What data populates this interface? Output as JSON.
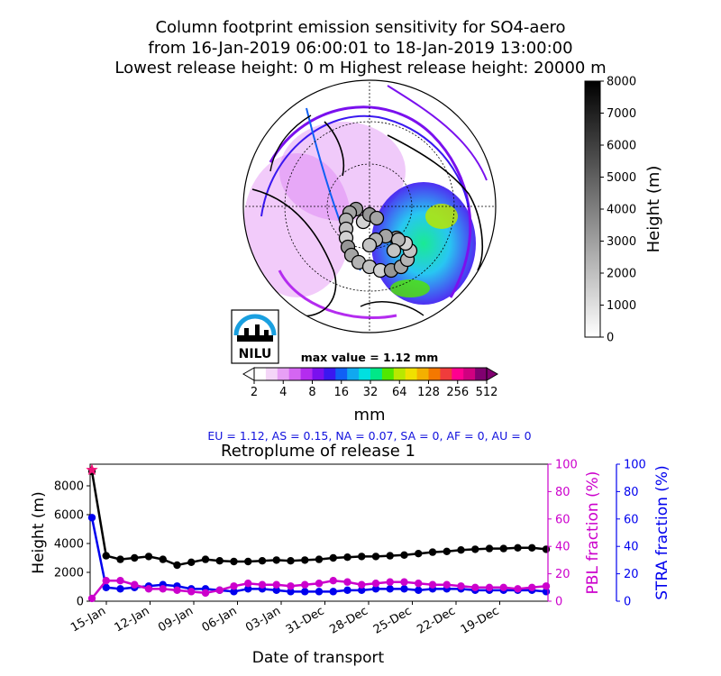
{
  "header": {
    "line1": "Column footprint emission sensitivity for SO4-aero",
    "line2": "from 16-Jan-2019 06:00:01 to 18-Jan-2019 13:00:00",
    "line3": "Lowest release height: 0 m       Highest release height: 20000 m"
  },
  "logo": {
    "text": "NILU"
  },
  "colors": {
    "pbl": "#cc00cc",
    "stra": "#0000ee",
    "height": "#000000",
    "release_marker": "#ee1177",
    "info_text": "#1111dd"
  },
  "map": {
    "max_label": "max value = 1.12 mm",
    "colorbar": {
      "ticks": [
        "2",
        "4",
        "8",
        "16",
        "32",
        "64",
        "128",
        "256",
        "512"
      ],
      "unit": "mm",
      "colors": [
        "#ffffff",
        "#f4d6f8",
        "#e7a0f5",
        "#d466f2",
        "#b42cef",
        "#7a10ee",
        "#3a18f0",
        "#1060f5",
        "#10a8f0",
        "#00e0e0",
        "#00e888",
        "#50e800",
        "#b8e800",
        "#f0e000",
        "#f4b000",
        "#f47800",
        "#f03c3c",
        "#ff0090",
        "#d00080",
        "#800070"
      ]
    },
    "region_info": "EU = 1.12,  AS = 0.15,  NA = 0.07,  SA = 0,  AF = 0,  AU = 0"
  },
  "height_colorbar": {
    "label": "Height (m)",
    "ticks": [
      "0",
      "1000",
      "2000",
      "3000",
      "4000",
      "5000",
      "6000",
      "7000",
      "8000"
    ]
  },
  "chart_data": {
    "type": "line",
    "title": "Retroplume of release 1",
    "xlabel": "Date of transport",
    "ylabel": "Height (m)",
    "ylabel_right1": "PBL fraction (%)",
    "ylabel_right2": "STRA fraction (%)",
    "ylim": [
      0,
      9500
    ],
    "ylim_right": [
      0,
      100
    ],
    "y_ticks": [
      "0",
      "2000",
      "4000",
      "6000",
      "8000"
    ],
    "y_right_ticks": [
      "0",
      "20",
      "40",
      "60",
      "80",
      "100"
    ],
    "x_tick_labels": [
      "15-Jan",
      "12-Jan",
      "09-Jan",
      "06-Jan",
      "03-Jan",
      "31-Dec",
      "28-Dec",
      "25-Dec",
      "22-Dec",
      "19-Dec"
    ],
    "grid": false,
    "series": [
      {
        "axis": "height",
        "values": [
          9000,
          3150,
          2900,
          3000,
          3100,
          2900,
          2500,
          2700,
          2900,
          2800,
          2750,
          2750,
          2800,
          2850,
          2800,
          2850,
          2900,
          3000,
          3050,
          3100,
          3100,
          3150,
          3200,
          3300,
          3400,
          3450,
          3550,
          3600,
          3650,
          3650,
          3700,
          3700,
          3600
        ]
      },
      {
        "axis": "pbl",
        "values": [
          2,
          15,
          15,
          12,
          9,
          9,
          8,
          7,
          6,
          8,
          11,
          13,
          12,
          12,
          11,
          12,
          13,
          15,
          14,
          12,
          13,
          14,
          14,
          13,
          12,
          12,
          11,
          10,
          10,
          10,
          9,
          10,
          11
        ]
      },
      {
        "axis": "stra",
        "values": [
          61,
          10,
          9,
          10,
          11,
          12,
          11,
          9,
          9,
          8,
          7,
          9,
          9,
          8,
          7,
          7,
          7,
          7,
          8,
          8,
          9,
          9,
          9,
          8,
          9,
          9,
          9,
          8,
          8,
          8,
          8,
          8,
          7
        ]
      }
    ],
    "release_marker": {
      "height": 9100
    }
  }
}
